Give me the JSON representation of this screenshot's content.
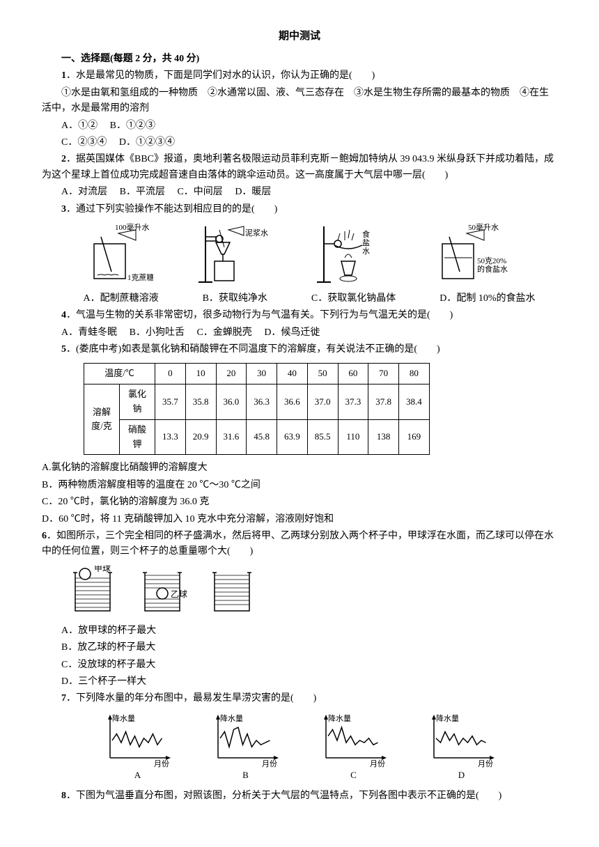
{
  "title": "期中测试",
  "section1_header": "一、选择题(每题 2 分，共 40 分)",
  "q1": {
    "num": "1",
    "text": "．水是最常见的物质，下面是同学们对水的认识，你认为正确的是(　　)",
    "sub": "①水是由氧和氢组成的一种物质　②水通常以固、液、气三态存在　③水是生物生存所需的最基本的物质　④在生活中，水是最常用的溶剂",
    "optA": "A．①②",
    "optB": "B．①②③",
    "optC": "C．②③④",
    "optD": "D．①②③④"
  },
  "q2": {
    "num": "2",
    "text": "．据英国媒体《BBC》报道，奥地利著名极限运动员菲利克斯－鲍姆加特纳从 39 043.9 米纵身跃下并成功着陆，成为这个星球上首位成功完成超音速自由落体的跳伞运动员。这一高度属于大气层中哪一层(　　)",
    "optA": "A．对流层",
    "optB": "B．平流层",
    "optC": "C．中间层",
    "optD": "D．暖层"
  },
  "q3": {
    "num": "3",
    "text": "．通过下列实验操作不能达到相应目的的是(　　)",
    "diagrams": {
      "labelA_top": "100毫升水",
      "labelA_bottom": "1克蔗糖",
      "labelB": "泥浆水",
      "labelC": "食盐水",
      "labelD_top": "50毫升水",
      "labelD_bottom": "50克20%的食盐水"
    },
    "optA": "A．配制蔗糖溶液",
    "optB": "B．获取纯净水",
    "optC": "C．获取氯化钠晶体",
    "optD": "D．配制 10%的食盐水"
  },
  "q4": {
    "num": "4",
    "text": "．气温与生物的关系非常密切，很多动物行为与气温有关。下列行为与气温无关的是(　　)",
    "optA": "A．青蛙冬眠",
    "optB": "B．小狗吐舌",
    "optC": "C．金蝉脱壳",
    "optD": "D．候鸟迁徙"
  },
  "q5": {
    "num": "5",
    "text": "．(娄底中考)如表是氯化钠和硝酸钾在不同温度下的溶解度，有关说法不正确的是(　　)",
    "table": {
      "header_temp": "温度/℃",
      "temps": [
        "0",
        "10",
        "20",
        "30",
        "40",
        "50",
        "60",
        "70",
        "80"
      ],
      "label_solubility": "溶解度/克",
      "row1_name": "氯化钠",
      "row1_vals": [
        "35.7",
        "35.8",
        "36.0",
        "36.3",
        "36.6",
        "37.0",
        "37.3",
        "37.8",
        "38.4"
      ],
      "row2_name": "硝酸钾",
      "row2_vals": [
        "13.3",
        "20.9",
        "31.6",
        "45.8",
        "63.9",
        "85.5",
        "110",
        "138",
        "169"
      ]
    },
    "optA": "A.氯化钠的溶解度比硝酸钾的溶解度大",
    "optB": "B．两种物质溶解度相等的温度在 20 ℃～30 ℃之间",
    "optC": "C．20 ℃时，氯化钠的溶解度为 36.0 克",
    "optD": "D．60 ℃时，将 11 克硝酸钾加入 10 克水中充分溶解，溶液刚好饱和"
  },
  "q6": {
    "num": "6",
    "text": "．如图所示，三个完全相同的杯子盛满水，然后将甲、乙两球分别放入两个杯子中，甲球浮在水面，而乙球可以停在水中的任何位置，则三个杯子的总重量哪个大(　　)",
    "label_jia": "甲球",
    "label_yi": "乙球",
    "optA": "A．放甲球的杯子最大",
    "optB": "B．放乙球的杯子最大",
    "optC": "C．没放球的杯子最大",
    "optD": "D．三个杯子一样大"
  },
  "q7": {
    "num": "7",
    "text": "．下列降水量的年分布图中，最易发生旱涝灾害的是(　　)",
    "chart_ylabel": "降水量",
    "chart_xlabel": "月份",
    "optA": "A",
    "optB": "B",
    "optC": "C",
    "optD": "D",
    "charts": {
      "A": [
        40,
        55,
        35,
        60,
        30,
        50,
        25,
        45,
        35,
        55,
        30,
        45
      ],
      "B": [
        45,
        60,
        25,
        65,
        70,
        30,
        55,
        25,
        40,
        30,
        35,
        40
      ],
      "C": [
        50,
        65,
        40,
        70,
        35,
        50,
        30,
        40,
        35,
        45,
        30,
        35
      ],
      "D": [
        45,
        35,
        60,
        40,
        55,
        30,
        45,
        35,
        50,
        30,
        40,
        35
      ]
    }
  },
  "q8": {
    "num": "8",
    "text": "．下图为气温垂直分布图，对照该图，分析关于大气层的气温特点，下列各图中表示不正确的是(　　)"
  }
}
